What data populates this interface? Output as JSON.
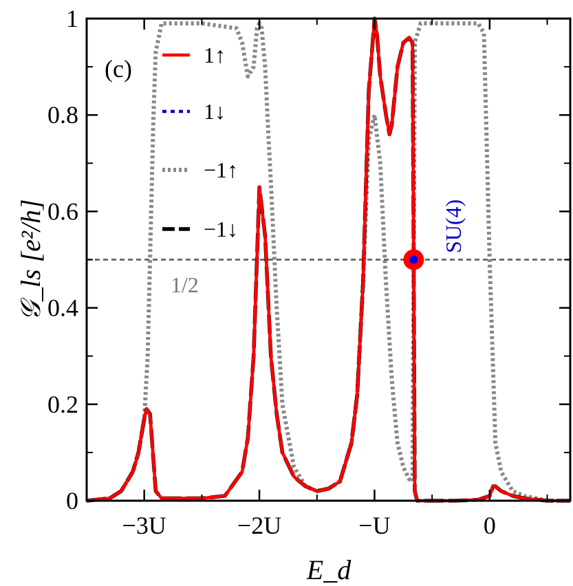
{
  "chart_data": {
    "type": "line",
    "panel_label": "(c)",
    "xlabel": "E_d",
    "ylabel": "𝒢_ls [e²/h]",
    "xlim": [
      -3.5,
      0.7
    ],
    "ylim": [
      0,
      1
    ],
    "x_ticks": [
      {
        "value": -3,
        "label": "−3U"
      },
      {
        "value": -2,
        "label": "−2U"
      },
      {
        "value": -1,
        "label": "−U"
      },
      {
        "value": 0,
        "label": "0"
      }
    ],
    "y_ticks": [
      {
        "value": 0,
        "label": "0"
      },
      {
        "value": 0.2,
        "label": "0.2"
      },
      {
        "value": 0.4,
        "label": "0.4"
      },
      {
        "value": 0.6,
        "label": "0.6"
      },
      {
        "value": 0.8,
        "label": "0.8"
      },
      {
        "value": 1,
        "label": "1"
      }
    ],
    "legend_position": "top-left",
    "series": [
      {
        "name": "1↑",
        "color": "#ff0000",
        "style": "solid",
        "x": [
          -3.5,
          -3.3,
          -3.2,
          -3.1,
          -3.05,
          -3.0,
          -2.98,
          -2.95,
          -2.9,
          -2.85,
          -2.8,
          -2.7,
          -2.5,
          -2.3,
          -2.15,
          -2.1,
          -2.05,
          -2.0,
          -1.95,
          -1.9,
          -1.85,
          -1.8,
          -1.7,
          -1.6,
          -1.5,
          -1.4,
          -1.3,
          -1.2,
          -1.15,
          -1.1,
          -1.05,
          -1.0,
          -0.98,
          -0.95,
          -0.9,
          -0.87,
          -0.85,
          -0.8,
          -0.75,
          -0.7,
          -0.67,
          -0.66,
          -0.65,
          -0.63,
          -0.5,
          -0.3,
          -0.1,
          0.0,
          0.03,
          0.05,
          0.1,
          0.2,
          0.3,
          0.5,
          0.7
        ],
        "y": [
          0.0,
          0.005,
          0.02,
          0.06,
          0.1,
          0.17,
          0.19,
          0.18,
          0.02,
          0.005,
          0.005,
          0.005,
          0.005,
          0.01,
          0.06,
          0.13,
          0.3,
          0.65,
          0.55,
          0.3,
          0.18,
          0.1,
          0.05,
          0.03,
          0.02,
          0.025,
          0.04,
          0.12,
          0.22,
          0.45,
          0.85,
          1.0,
          0.97,
          0.88,
          0.8,
          0.76,
          0.78,
          0.9,
          0.95,
          0.96,
          0.95,
          0.5,
          0.02,
          0.0,
          0.0,
          0.0,
          0.002,
          0.01,
          0.03,
          0.03,
          0.02,
          0.01,
          0.005,
          0.0,
          0.0
        ]
      },
      {
        "name": "1↓",
        "color": "#0000cc",
        "style": "dashed",
        "x": [
          -3.5,
          -3.3,
          -3.2,
          -3.1,
          -3.05,
          -3.0,
          -2.98,
          -2.95,
          -2.9,
          -2.85,
          -2.8,
          -2.7,
          -2.5,
          -2.3,
          -2.15,
          -2.1,
          -2.05,
          -2.0,
          -1.95,
          -1.9,
          -1.85,
          -1.8,
          -1.7,
          -1.6,
          -1.5,
          -1.4,
          -1.3,
          -1.2,
          -1.15,
          -1.1,
          -1.05,
          -1.0,
          -0.98,
          -0.95,
          -0.9,
          -0.87,
          -0.85,
          -0.8,
          -0.75,
          -0.7,
          -0.67,
          -0.66,
          -0.65,
          -0.63,
          -0.5,
          -0.3,
          -0.1,
          0.0,
          0.03,
          0.05,
          0.1,
          0.2,
          0.3,
          0.5,
          0.7
        ],
        "y": [
          0.0,
          0.005,
          0.02,
          0.06,
          0.1,
          0.17,
          0.19,
          0.18,
          0.02,
          0.005,
          0.005,
          0.005,
          0.005,
          0.01,
          0.06,
          0.13,
          0.3,
          0.65,
          0.55,
          0.3,
          0.18,
          0.1,
          0.05,
          0.03,
          0.02,
          0.025,
          0.04,
          0.12,
          0.22,
          0.45,
          0.85,
          1.0,
          0.97,
          0.88,
          0.8,
          0.76,
          0.78,
          0.9,
          0.95,
          0.96,
          0.95,
          0.5,
          0.02,
          0.0,
          0.0,
          0.0,
          0.002,
          0.01,
          0.03,
          0.03,
          0.02,
          0.01,
          0.005,
          0.0,
          0.0
        ]
      },
      {
        "name": "−1↑",
        "color": "#888888",
        "style": "dotted",
        "x": [
          -3.5,
          -3.3,
          -3.2,
          -3.1,
          -3.05,
          -3.0,
          -2.97,
          -2.95,
          -2.92,
          -2.9,
          -2.85,
          -2.8,
          -2.5,
          -2.2,
          -2.15,
          -2.1,
          -2.05,
          -2.02,
          -2.0,
          -1.98,
          -1.95,
          -1.92,
          -1.9,
          -1.85,
          -1.8,
          -1.7,
          -1.6,
          -1.5,
          -1.4,
          -1.3,
          -1.2,
          -1.15,
          -1.1,
          -1.05,
          -1.0,
          -0.95,
          -0.9,
          -0.85,
          -0.8,
          -0.75,
          -0.7,
          -0.67,
          -0.66,
          -0.65,
          -0.6,
          -0.5,
          -0.3,
          -0.1,
          -0.05,
          0.0,
          0.05,
          0.1,
          0.2,
          0.3,
          0.5,
          0.7
        ],
        "y": [
          0.0,
          0.005,
          0.02,
          0.06,
          0.1,
          0.17,
          0.3,
          0.5,
          0.8,
          0.93,
          0.99,
          0.99,
          0.99,
          0.98,
          0.95,
          0.88,
          0.9,
          0.98,
          0.99,
          0.98,
          0.9,
          0.75,
          0.66,
          0.4,
          0.2,
          0.07,
          0.03,
          0.02,
          0.025,
          0.04,
          0.12,
          0.22,
          0.45,
          0.75,
          0.8,
          0.7,
          0.45,
          0.25,
          0.12,
          0.07,
          0.045,
          0.04,
          0.5,
          0.95,
          0.99,
          0.99,
          0.99,
          0.99,
          0.97,
          0.5,
          0.12,
          0.06,
          0.02,
          0.01,
          0.0,
          0.0
        ]
      },
      {
        "name": "−1↓",
        "color": "#000000",
        "style": "dashed",
        "x": [
          -3.5,
          -3.3,
          -3.2,
          -3.1,
          -3.05,
          -3.0,
          -2.98,
          -2.95,
          -2.9,
          -2.85,
          -2.8,
          -2.7,
          -2.5,
          -2.3,
          -2.15,
          -2.1,
          -2.05,
          -2.0,
          -1.95,
          -1.9,
          -1.85,
          -1.8,
          -1.7,
          -1.6,
          -1.5,
          -1.4,
          -1.3,
          -1.2,
          -1.15,
          -1.1,
          -1.05,
          -1.0,
          -0.98,
          -0.95,
          -0.9,
          -0.87,
          -0.85,
          -0.8,
          -0.75,
          -0.7,
          -0.67,
          -0.66,
          -0.65,
          -0.63,
          -0.5,
          -0.3,
          -0.1,
          0.0,
          0.03,
          0.05,
          0.1,
          0.2,
          0.3,
          0.5,
          0.7
        ],
        "y": [
          0.0,
          0.005,
          0.02,
          0.06,
          0.1,
          0.17,
          0.19,
          0.18,
          0.02,
          0.005,
          0.005,
          0.005,
          0.005,
          0.01,
          0.06,
          0.13,
          0.3,
          0.65,
          0.55,
          0.3,
          0.18,
          0.1,
          0.05,
          0.03,
          0.02,
          0.025,
          0.04,
          0.12,
          0.22,
          0.45,
          0.85,
          1.0,
          0.97,
          0.88,
          0.8,
          0.76,
          0.78,
          0.9,
          0.95,
          0.96,
          0.95,
          0.5,
          0.02,
          0.0,
          0.0,
          0.0,
          0.002,
          0.01,
          0.03,
          0.03,
          0.02,
          0.01,
          0.005,
          0.0,
          0.0
        ]
      }
    ],
    "reference_line": {
      "y": 0.5,
      "label": "1/2",
      "color": "#555555",
      "style": "dashed"
    },
    "annotation": {
      "label": "SU(4)",
      "x": -0.66,
      "y": 0.5,
      "marker_outer_color": "#ff0000",
      "marker_inner_color": "#0000ff",
      "label_color": "#0000cc"
    }
  }
}
